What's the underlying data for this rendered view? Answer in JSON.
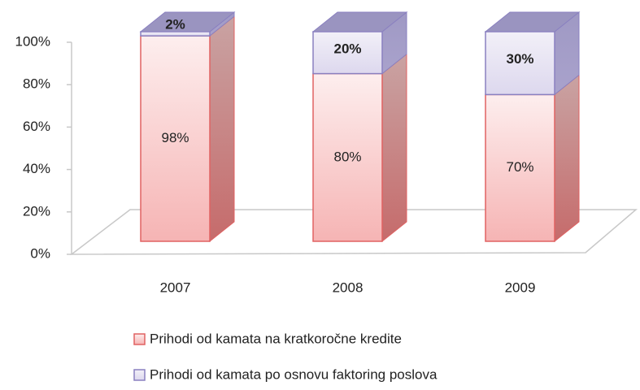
{
  "chart_data": {
    "type": "bar",
    "stacked": true,
    "categories": [
      "2007",
      "2008",
      "2009"
    ],
    "series": [
      {
        "name": "Prihodi od kamata na kratkoročne kredite",
        "color": "#f4a0a0",
        "values": [
          98,
          80,
          70
        ],
        "value_labels": [
          "98%",
          "80%",
          "70%"
        ]
      },
      {
        "name": "Prihodi od kamata po osnovu faktoring poslova",
        "color": "#cfc8e6",
        "values": [
          2,
          20,
          30
        ],
        "value_labels": [
          "2%",
          "20%",
          "30%"
        ]
      }
    ],
    "ylim": [
      0,
      100
    ],
    "yticks": [
      {
        "value": 0,
        "label": "0%"
      },
      {
        "value": 20,
        "label": "20%"
      },
      {
        "value": 40,
        "label": "40%"
      },
      {
        "value": 60,
        "label": "60%"
      },
      {
        "value": 80,
        "label": "80%"
      },
      {
        "value": 100,
        "label": "100%"
      }
    ],
    "legend": "bottom"
  }
}
